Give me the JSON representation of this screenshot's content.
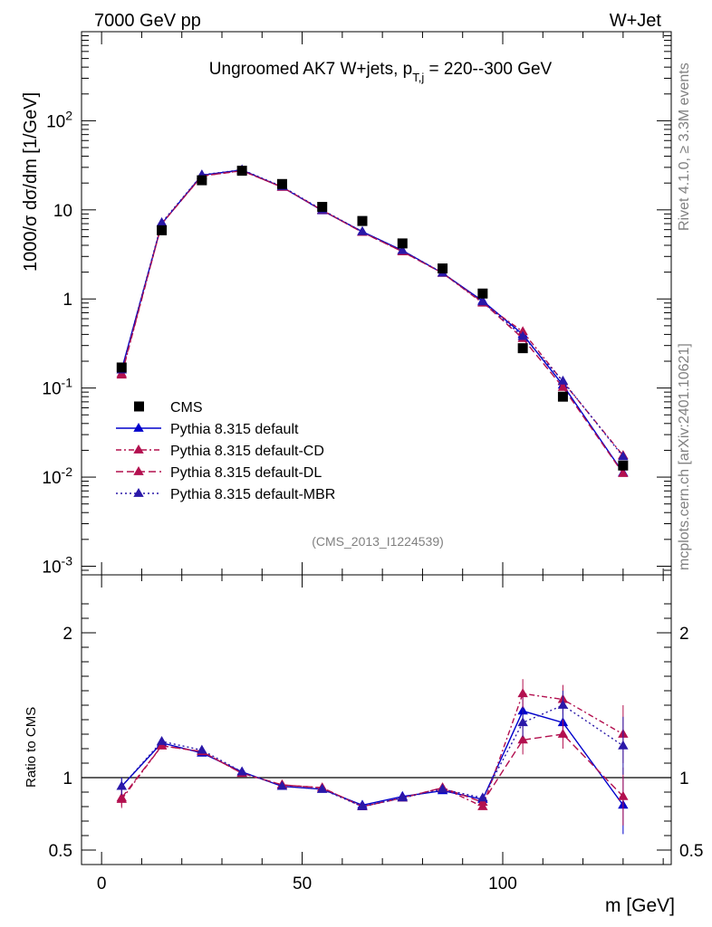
{
  "header": {
    "left": "7000 GeV pp",
    "right": "W+Jet"
  },
  "side": {
    "rivet": "Rivet 4.1.0, ≥ 3.3M events",
    "mcplots": "mcplots.cern.ch [arXiv:2401.10621]"
  },
  "chart_data": {
    "type": "line",
    "title": "Ungroomed AK7 W+jets, p",
    "title_sub": "T,j",
    "title_rest": " = 220--300 GeV",
    "analysis_id": "(CMS_2013_I1224539)",
    "xlabel": "m [GeV]",
    "ylabel_main": "1000/σ  dσ/dm [1/GeV]",
    "ylabel_ratio": "Ratio to CMS",
    "xlim": [
      -5,
      142
    ],
    "ylim_main": [
      0.0008,
      1000
    ],
    "ylim_ratio": [
      0.4,
      2.4
    ],
    "x": [
      5,
      15,
      25,
      35,
      45,
      55,
      65,
      75,
      85,
      95,
      105,
      115,
      130
    ],
    "x_ticks": [
      "0",
      "50",
      "100"
    ],
    "y_ticks_main": [
      "10^-3",
      "10^-2",
      "10^-1",
      "1",
      "10",
      "10^2"
    ],
    "y_ticks_ratio": [
      "0.5",
      "1",
      "2"
    ],
    "data": {
      "name": "CMS",
      "values": [
        0.17,
        5.9,
        21.5,
        27.5,
        19.5,
        10.8,
        7.5,
        4.2,
        2.2,
        1.15,
        0.28,
        0.08,
        0.0135
      ]
    },
    "series": [
      {
        "name": "Pythia 8.315 default",
        "color": "#0000cc",
        "dash": "",
        "values": [
          0.16,
          7.0,
          24.5,
          28.0,
          18.0,
          9.8,
          5.7,
          3.5,
          1.95,
          0.95,
          0.4,
          0.108,
          0.0112
        ],
        "ratio": [
          0.94,
          1.24,
          1.17,
          1.04,
          0.94,
          0.92,
          0.81,
          0.87,
          0.91,
          0.85,
          1.46,
          1.38,
          0.81
        ]
      },
      {
        "name": "Pythia 8.315 default-CD",
        "color": "#b3104f",
        "dash": "6 3 2 3",
        "values": [
          0.14,
          7.0,
          24.0,
          27.5,
          18.0,
          9.9,
          5.6,
          3.4,
          1.95,
          0.9,
          0.43,
          0.118,
          0.0175
        ],
        "ratio": [
          0.85,
          1.22,
          1.18,
          1.03,
          0.95,
          0.93,
          0.8,
          0.86,
          0.93,
          0.8,
          1.58,
          1.54,
          1.3
        ]
      },
      {
        "name": "Pythia 8.315 default-DL",
        "color": "#b3104f",
        "dash": "8 4",
        "values": [
          0.145,
          7.0,
          24.0,
          27.5,
          18.0,
          9.9,
          5.6,
          3.4,
          1.95,
          0.92,
          0.36,
          0.102,
          0.011
        ],
        "ratio": [
          0.86,
          1.22,
          1.18,
          1.03,
          0.95,
          0.93,
          0.8,
          0.86,
          0.93,
          0.83,
          1.26,
          1.3,
          0.87
        ]
      },
      {
        "name": "Pythia 8.315 default-MBR",
        "color": "#2a18a8",
        "dash": "2 3",
        "values": [
          0.16,
          7.2,
          24.7,
          28.2,
          18.3,
          10.0,
          5.7,
          3.5,
          1.96,
          0.93,
          0.38,
          0.12,
          0.017
        ],
        "ratio": [
          0.94,
          1.25,
          1.19,
          1.04,
          0.94,
          0.92,
          0.8,
          0.86,
          0.92,
          0.86,
          1.38,
          1.5,
          1.22
        ]
      }
    ]
  }
}
